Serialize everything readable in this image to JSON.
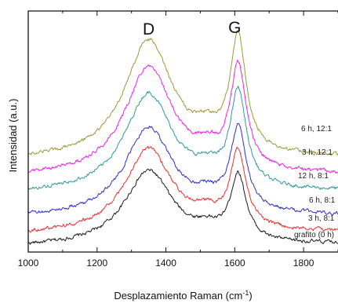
{
  "chart_data": {
    "type": "line",
    "title": "",
    "xlabel": {
      "main": "Desplazamiento Raman (cm",
      "sup": "-1",
      "close": ")"
    },
    "ylabel": "Intensidad (a.u.)",
    "xlim": [
      1000,
      1900
    ],
    "xticks": [
      1000,
      1200,
      1400,
      1600,
      1800
    ],
    "xtick_labels": [
      "1000",
      "1200",
      "1400",
      "1600",
      "1800"
    ],
    "y_tick_labels_shown": false,
    "grid": false,
    "annotations": [
      {
        "text": "D",
        "x": 1350
      },
      {
        "text": "G",
        "x": 1600
      }
    ],
    "bands": {
      "D": {
        "center": 1350,
        "width": 85
      },
      "G": {
        "center": 1610,
        "width": 28
      }
    },
    "series": [
      {
        "name": "grafito (0 h)",
        "color": "#1a1a1a",
        "baseline": 0.02,
        "d_amp": 0.31,
        "g_amp": 0.27
      },
      {
        "name": "3 h, 8:1",
        "color": "#e8302e",
        "baseline": 0.07,
        "d_amp": 0.35,
        "g_amp": 0.31
      },
      {
        "name": "6 h, 8:1",
        "color": "#2f2fc8",
        "baseline": 0.14,
        "d_amp": 0.37,
        "g_amp": 0.34
      },
      {
        "name": "12 h, 8:1",
        "color": "#2e9a9a",
        "baseline": 0.24,
        "d_amp": 0.41,
        "g_amp": 0.39
      },
      {
        "name": "3 h, 12:1",
        "color": "#ee1fee",
        "baseline": 0.31,
        "d_amp": 0.45,
        "g_amp": 0.42
      },
      {
        "name": "6 h, 12:1",
        "color": "#9a9a3a",
        "baseline": 0.38,
        "d_amp": 0.49,
        "g_amp": 0.47
      }
    ]
  }
}
